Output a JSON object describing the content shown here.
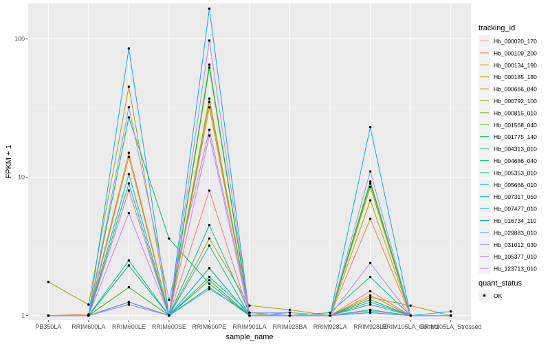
{
  "chart_data": {
    "type": "line",
    "xlabel": "sample_name",
    "ylabel": "FPKM + 1",
    "y_scale": "log10",
    "ylim": [
      0.93,
      180
    ],
    "y_ticks": [
      1,
      10,
      100
    ],
    "y_tick_labels": [
      "1",
      "10",
      "100"
    ],
    "grid": true,
    "legend_position": "right",
    "categories": [
      "PB350LA",
      "RRIM600LA",
      "RRIM600LE",
      "RRIM600SE",
      "RRIM600PE",
      "RRIM901LA",
      "RRIM928BA",
      "RRIM928LA",
      "RRIM928LE",
      "RRIM105LA_Control",
      "RRIM105LA_Stressed"
    ],
    "legend_title": "tracking_id",
    "series": [
      {
        "name": "Hb_000020_170",
        "color": "#F8766D",
        "values": [
          1,
          1,
          8,
          1,
          8,
          1,
          1,
          1,
          1.5,
          1,
          1
        ]
      },
      {
        "name": "Hb_000109_200",
        "color": "#EC8239",
        "values": [
          1,
          1.02,
          15,
          1,
          35,
          1,
          1,
          1,
          5,
          1,
          1
        ]
      },
      {
        "name": "Hb_000134_190",
        "color": "#DB8E00",
        "values": [
          1,
          1,
          14,
          1,
          2.2,
          1,
          1,
          1,
          1.4,
          1,
          1
        ]
      },
      {
        "name": "Hb_000185_180",
        "color": "#C79800",
        "values": [
          1,
          1,
          2.3,
          1,
          32,
          1,
          1,
          1,
          6.8,
          1,
          1
        ]
      },
      {
        "name": "Hb_000666_040",
        "color": "#AFA100",
        "values": [
          1.75,
          1.2,
          45,
          1,
          3.6,
          1.18,
          1.1,
          1,
          1.35,
          1.18,
          1
        ]
      },
      {
        "name": "Hb_000792_100",
        "color": "#94A900",
        "values": [
          1,
          1,
          1.25,
          1,
          37,
          1,
          1,
          1,
          8.5,
          1,
          1
        ]
      },
      {
        "name": "Hb_000815_010",
        "color": "#72B000",
        "values": [
          1,
          1,
          1.25,
          1,
          65,
          1,
          1.05,
          1,
          9,
          1,
          1
        ]
      },
      {
        "name": "Hb_001568_040",
        "color": "#3BB600",
        "values": [
          1,
          1,
          1.6,
          1,
          1.8,
          1,
          1,
          1,
          1.2,
          1,
          1
        ]
      },
      {
        "name": "Hb_001775_140",
        "color": "#00BA38",
        "values": [
          1,
          1,
          1.25,
          1,
          62,
          1,
          1,
          1,
          9.3,
          1,
          1
        ]
      },
      {
        "name": "Hb_004313_010",
        "color": "#00BD5F",
        "values": [
          1,
          1,
          27,
          3.6,
          1.7,
          1,
          1,
          1,
          1.3,
          1,
          1
        ]
      },
      {
        "name": "Hb_004686_040",
        "color": "#00BF7D",
        "values": [
          1,
          1,
          1.2,
          1,
          1.6,
          1,
          1,
          1,
          1.1,
          1,
          1
        ]
      },
      {
        "name": "Hb_005353_010",
        "color": "#00C097",
        "values": [
          1,
          1,
          2.3,
          1,
          4.5,
          1.05,
          1,
          1.05,
          1.9,
          1,
          1
        ]
      },
      {
        "name": "Hb_005666_010",
        "color": "#00C0AF",
        "values": [
          1,
          1,
          2.5,
          1,
          3.2,
          1,
          1,
          1,
          1.05,
          1,
          1
        ]
      },
      {
        "name": "Hb_007317_050",
        "color": "#00BCC5",
        "values": [
          1,
          1,
          10.5,
          1,
          1.9,
          1.05,
          1,
          1,
          1.25,
          1,
          1
        ]
      },
      {
        "name": "Hb_007477_010",
        "color": "#00B5D9",
        "values": [
          1,
          1,
          9,
          1,
          2.2,
          1,
          1,
          1,
          1.05,
          1,
          1
        ]
      },
      {
        "name": "Hb_016734_110",
        "color": "#00ABFD",
        "values": [
          1,
          1,
          85,
          1,
          165,
          1,
          1,
          1,
          23,
          1,
          1.07
        ]
      },
      {
        "name": "Hb_029883_010",
        "color": "#619CFF",
        "values": [
          1,
          1,
          1.25,
          1,
          1.55,
          1.05,
          1,
          1,
          1.2,
          1,
          1
        ]
      },
      {
        "name": "Hb_031012_030",
        "color": "#9590FF",
        "values": [
          1,
          1,
          32,
          1.3,
          22,
          1.05,
          1.05,
          1,
          11,
          1,
          1
        ]
      },
      {
        "name": "Hb_105377_010",
        "color": "#B983FF",
        "values": [
          1,
          1,
          1.2,
          1,
          97,
          1,
          1,
          1,
          2.4,
          1,
          1
        ]
      },
      {
        "name": "Hb_123713_010",
        "color": "#D376FF",
        "values": [
          1,
          1,
          5.5,
          1,
          20,
          1,
          1,
          1,
          1.08,
          1,
          1
        ]
      }
    ],
    "shape_legend": {
      "title": "quant_status",
      "entries": [
        {
          "label": "OK",
          "marker": "circle"
        }
      ]
    }
  }
}
